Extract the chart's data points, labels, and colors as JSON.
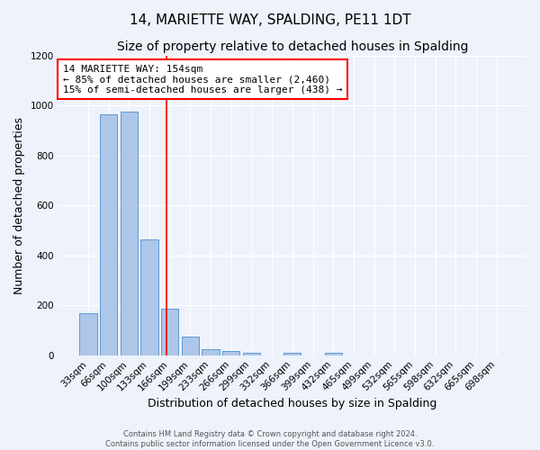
{
  "title": "14, MARIETTE WAY, SPALDING, PE11 1DT",
  "subtitle": "Size of property relative to detached houses in Spalding",
  "xlabel": "Distribution of detached houses by size in Spalding",
  "ylabel": "Number of detached properties",
  "categories": [
    "33sqm",
    "66sqm",
    "100sqm",
    "133sqm",
    "166sqm",
    "199sqm",
    "233sqm",
    "266sqm",
    "299sqm",
    "332sqm",
    "366sqm",
    "399sqm",
    "432sqm",
    "465sqm",
    "499sqm",
    "532sqm",
    "565sqm",
    "598sqm",
    "632sqm",
    "665sqm",
    "698sqm"
  ],
  "values": [
    170,
    965,
    975,
    465,
    185,
    75,
    25,
    18,
    10,
    0,
    10,
    0,
    10,
    0,
    0,
    0,
    0,
    0,
    0,
    0,
    0
  ],
  "bar_color": "#aec6e8",
  "bar_edge_color": "#5b9bd5",
  "red_line_x": 3.85,
  "annotation_text": "14 MARIETTE WAY: 154sqm\n← 85% of detached houses are smaller (2,460)\n15% of semi-detached houses are larger (438) →",
  "annotation_box_color": "white",
  "annotation_box_edge_color": "red",
  "red_line_color": "red",
  "ylim": [
    0,
    1200
  ],
  "yticks": [
    0,
    200,
    400,
    600,
    800,
    1000,
    1200
  ],
  "footer_line1": "Contains HM Land Registry data © Crown copyright and database right 2024.",
  "footer_line2": "Contains public sector information licensed under the Open Government Licence v3.0.",
  "background_color": "#eef2fb",
  "title_fontsize": 11,
  "subtitle_fontsize": 10,
  "tick_fontsize": 7.5,
  "ylabel_fontsize": 9,
  "xlabel_fontsize": 9,
  "annotation_fontsize": 8,
  "footer_fontsize": 6
}
